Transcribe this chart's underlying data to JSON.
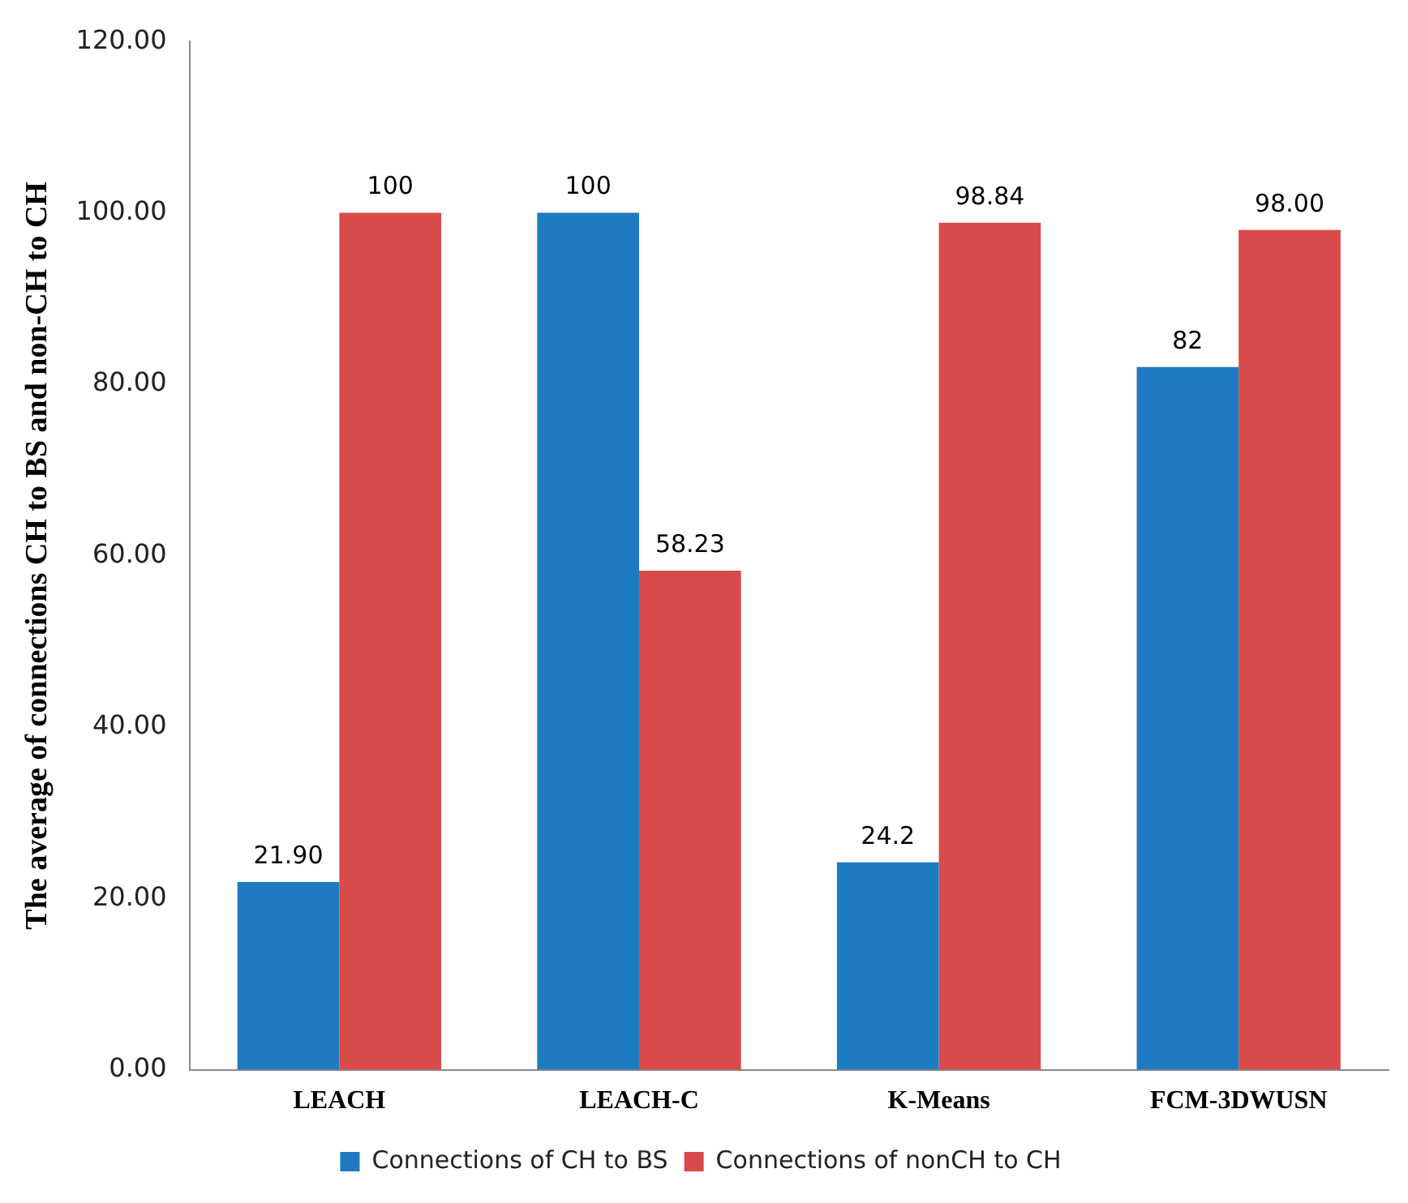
{
  "chart_data": {
    "type": "bar",
    "ylabel": "The average of connections CH to BS and non-CH to CH",
    "categories": [
      "LEACH",
      "LEACH-C",
      "K-Means",
      "FCM-3DWUSN"
    ],
    "series": [
      {
        "name": "Connections of CH to BS",
        "color": "#1f7bbf",
        "values": [
          21.9,
          100,
          24.2,
          82
        ],
        "value_labels": [
          "21.90",
          "100",
          "24.2",
          "82"
        ]
      },
      {
        "name": "Connections of nonCH to CH",
        "color": "#d94a4a",
        "values": [
          100,
          58.23,
          98.84,
          98
        ],
        "value_labels": [
          "100",
          "58.23",
          "98.84",
          "98.00"
        ]
      }
    ],
    "ylim": [
      0,
      120
    ],
    "yticks": [
      {
        "value": 0,
        "label": "0.00"
      },
      {
        "value": 20,
        "label": "20.00"
      },
      {
        "value": 40,
        "label": "40.00"
      },
      {
        "value": 60,
        "label": "60.00"
      },
      {
        "value": 80,
        "label": "80.00"
      },
      {
        "value": 100,
        "label": "100.00"
      },
      {
        "value": 120,
        "label": "120.00"
      }
    ],
    "grid": false,
    "legend": "bottom"
  }
}
